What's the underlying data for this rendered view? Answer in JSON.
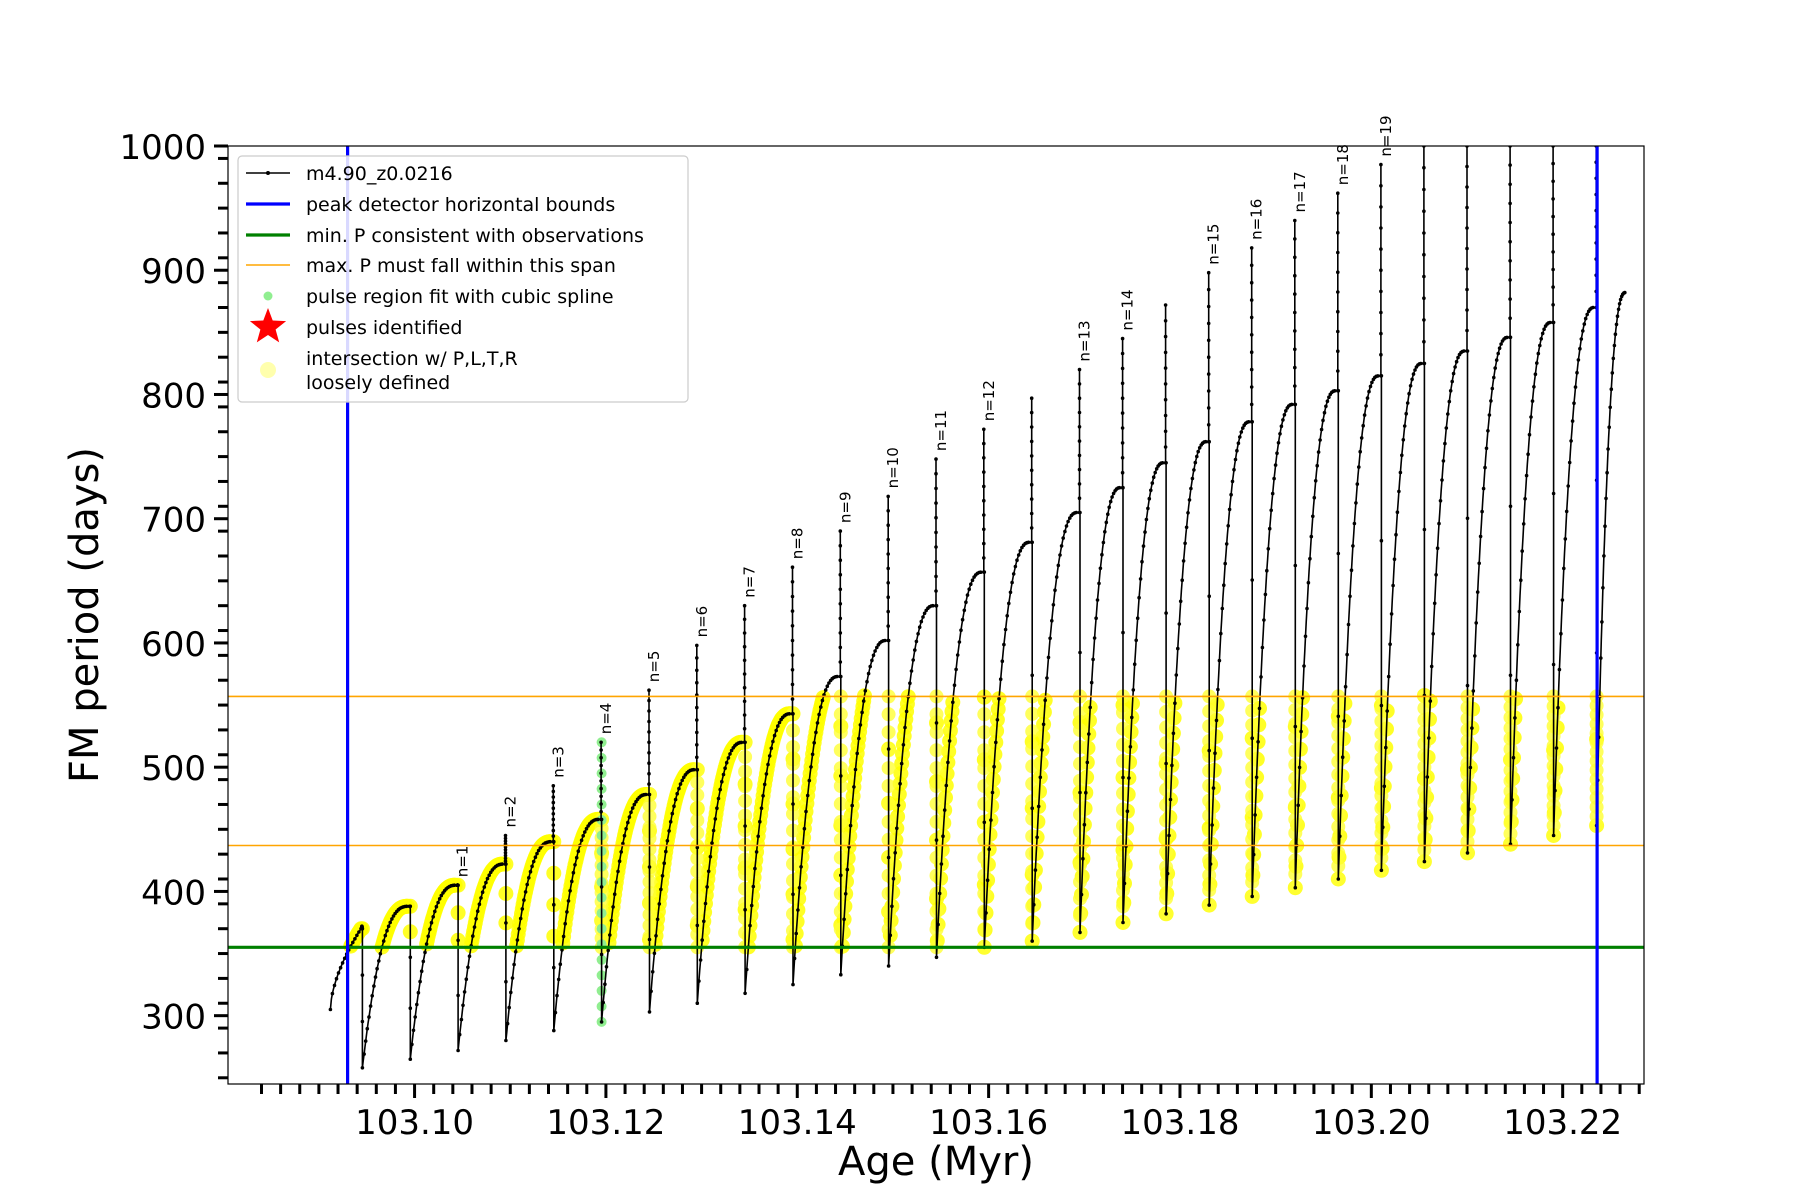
{
  "chart_data": {
    "type": "line",
    "xlabel": "Age (Myr)",
    "ylabel": "FM period (days)",
    "xlim": [
      103.0805,
      103.2285
    ],
    "ylim": [
      245,
      1000
    ],
    "x_ticks": [
      103.1,
      103.12,
      103.14,
      103.16,
      103.18,
      103.2,
      103.22
    ],
    "x_tick_labels": [
      "103.10",
      "103.12",
      "103.14",
      "103.16",
      "103.18",
      "103.20",
      "103.22"
    ],
    "y_ticks": [
      300,
      400,
      500,
      600,
      700,
      800,
      900,
      1000
    ],
    "y_tick_labels": [
      "300",
      "400",
      "500",
      "600",
      "700",
      "800",
      "900",
      "1000"
    ],
    "grid": false,
    "legend_position": "top-left",
    "legend": [
      {
        "label": "m4.90_z0.0216",
        "marker": "line-dot",
        "color": "#000000"
      },
      {
        "label": "peak detector horizontal bounds",
        "marker": "line",
        "color": "#0000ff"
      },
      {
        "label": "min. P consistent with observations",
        "marker": "line",
        "color": "#008000"
      },
      {
        "label": "max. P must fall within this span",
        "marker": "thin-line",
        "color": "#ffa500"
      },
      {
        "label": "pulse region fit with cubic spline",
        "marker": "dot",
        "color": "#90ee90"
      },
      {
        "label": "pulses identified",
        "marker": "star",
        "color": "#ff0000"
      },
      {
        "label": "intersection w/ P,L,T,R",
        "label2": "loosely defined",
        "marker": "circle",
        "color": "#ffff99"
      }
    ],
    "vertical_lines": [
      {
        "x": 103.093,
        "color": "#0000ff"
      },
      {
        "x": 103.2236,
        "color": "#0000ff"
      }
    ],
    "horizontal_lines": [
      {
        "y": 355,
        "color": "#008000"
      },
      {
        "y": 437,
        "color": "#ffa500"
      },
      {
        "y": 557,
        "color": "#ffa500"
      }
    ],
    "pulses": [
      {
        "x": 103.0945,
        "min": 258,
        "peak": 372,
        "label": ""
      },
      {
        "x": 103.0995,
        "min": 265,
        "peak": 388,
        "label": ""
      },
      {
        "x": 103.1045,
        "min": 272,
        "peak": 405,
        "label": "n=1"
      },
      {
        "x": 103.1095,
        "min": 280,
        "peak": 445,
        "label": "n=2"
      },
      {
        "x": 103.1145,
        "min": 288,
        "peak": 485,
        "label": "n=3"
      },
      {
        "x": 103.1195,
        "min": 295,
        "peak": 520,
        "label": "n=4"
      },
      {
        "x": 103.1245,
        "min": 303,
        "peak": 562,
        "label": "n=5"
      },
      {
        "x": 103.1295,
        "min": 310,
        "peak": 598,
        "label": "n=6"
      },
      {
        "x": 103.1345,
        "min": 318,
        "peak": 630,
        "label": "n=7"
      },
      {
        "x": 103.1395,
        "min": 325,
        "peak": 661,
        "label": "n=8"
      },
      {
        "x": 103.1445,
        "min": 333,
        "peak": 690,
        "label": "n=9"
      },
      {
        "x": 103.1495,
        "min": 340,
        "peak": 718,
        "label": "n=10"
      },
      {
        "x": 103.1545,
        "min": 347,
        "peak": 748,
        "label": "n=11"
      },
      {
        "x": 103.1595,
        "min": 355,
        "peak": 772,
        "label": "n=12"
      },
      {
        "x": 103.1645,
        "min": 360,
        "peak": 797,
        "label": ""
      },
      {
        "x": 103.1695,
        "min": 367,
        "peak": 820,
        "label": "n=13"
      },
      {
        "x": 103.174,
        "min": 375,
        "peak": 845,
        "label": "n=14"
      },
      {
        "x": 103.1785,
        "min": 382,
        "peak": 872,
        "label": ""
      },
      {
        "x": 103.183,
        "min": 389,
        "peak": 898,
        "label": "n=15"
      },
      {
        "x": 103.1875,
        "min": 396,
        "peak": 918,
        "label": "n=16"
      },
      {
        "x": 103.192,
        "min": 403,
        "peak": 940,
        "label": "n=17"
      },
      {
        "x": 103.1965,
        "min": 410,
        "peak": 962,
        "label": "n=18"
      },
      {
        "x": 103.201,
        "min": 417,
        "peak": 985,
        "label": "n=19"
      },
      {
        "x": 103.2055,
        "min": 424,
        "peak": 1000,
        "label": ""
      },
      {
        "x": 103.21,
        "min": 431,
        "peak": 1000,
        "label": ""
      },
      {
        "x": 103.2145,
        "min": 438,
        "peak": 1000,
        "label": ""
      },
      {
        "x": 103.219,
        "min": 445,
        "peak": 1000,
        "label": ""
      },
      {
        "x": 103.2235,
        "min": 453,
        "peak": 1000,
        "label": ""
      }
    ],
    "interpulse_peaks": [
      370,
      388,
      405,
      422,
      440,
      458,
      478,
      498,
      520,
      543,
      573,
      602,
      630,
      657,
      681,
      705,
      725,
      745,
      762,
      778,
      792,
      803,
      815,
      825,
      835,
      846,
      858,
      870
    ],
    "track_start": {
      "x": 103.0912,
      "y": 305
    },
    "track_end": {
      "x": 103.2268,
      "y": 882
    }
  }
}
